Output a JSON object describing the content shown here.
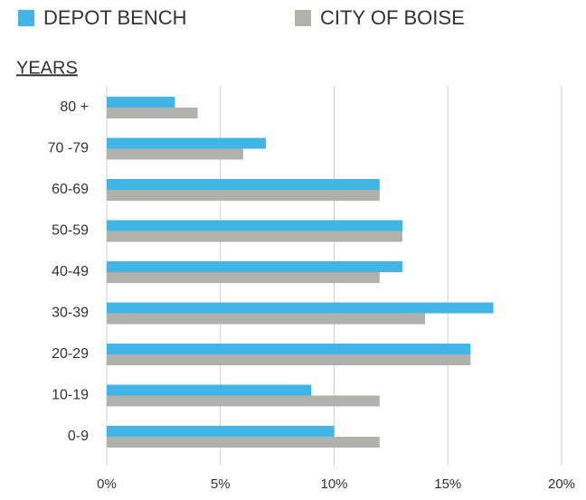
{
  "chart_data": {
    "type": "hbar",
    "y_axis_label": "YEARS",
    "categories": [
      "80 +",
      "70 -79",
      "60-69",
      "50-59",
      "40-49",
      "30-39",
      "20-29",
      "10-19",
      "0-9"
    ],
    "series": [
      {
        "name": "DEPOT BENCH",
        "color": "#41b6e6",
        "values": [
          3,
          7,
          12,
          13,
          13,
          17,
          16,
          9,
          10
        ]
      },
      {
        "name": "CITY OF BOISE",
        "color": "#b1b1ac",
        "values": [
          4,
          6,
          12,
          13,
          12,
          14,
          16,
          12,
          12
        ]
      }
    ],
    "xlim": [
      0,
      20
    ],
    "xticks": [
      {
        "value": 0,
        "label": "0%"
      },
      {
        "value": 5,
        "label": "5%"
      },
      {
        "value": 10,
        "label": "10%"
      },
      {
        "value": 15,
        "label": "15%"
      },
      {
        "value": 20,
        "label": "20%"
      }
    ],
    "grid": true
  }
}
